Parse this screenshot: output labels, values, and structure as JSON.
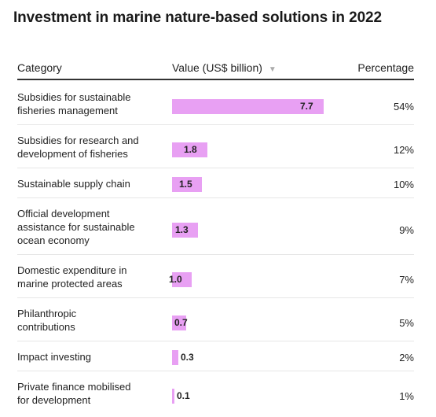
{
  "title": "Investment in marine nature-based solutions in 2022",
  "columns": {
    "category": "Category",
    "value": "Value (US$ billion)",
    "sort_icon": "sort-down-triangle",
    "percentage": "Percentage"
  },
  "colors": {
    "bar": "#e8a0f3",
    "header_rule": "#333333",
    "row_rule": "#e6e6e6"
  },
  "chart_data": {
    "type": "table",
    "title": "Investment in marine nature-based solutions in 2022",
    "xlabel": "",
    "ylabel": "Value (US$ billion)",
    "categories": [
      [
        "Subsidies for sustainable",
        "fisheries management"
      ],
      [
        "Subsidies for research and",
        "development of fisheries"
      ],
      [
        "Sustainable supply chain"
      ],
      [
        "Official development",
        "assistance for sustainable",
        "ocean economy"
      ],
      [
        "Domestic expenditure in",
        "marine protected areas"
      ],
      [
        "Philanthropic",
        "contributions"
      ],
      [
        "Impact investing"
      ],
      [
        "Private finance mobilised",
        "for development"
      ]
    ],
    "values": [
      7.7,
      1.8,
      1.5,
      1.3,
      1.0,
      0.7,
      0.3,
      0.1
    ],
    "value_labels": [
      "7.7",
      "1.8",
      "1.5",
      "1.3",
      "1.0",
      "0.7",
      "0.3",
      "0.1"
    ],
    "percentages": [
      "54%",
      "12%",
      "10%",
      "9%",
      "7%",
      "5%",
      "2%",
      "1%"
    ],
    "xlim": [
      0,
      7.7
    ],
    "sorted_by": "value",
    "sort_order": "descending"
  }
}
